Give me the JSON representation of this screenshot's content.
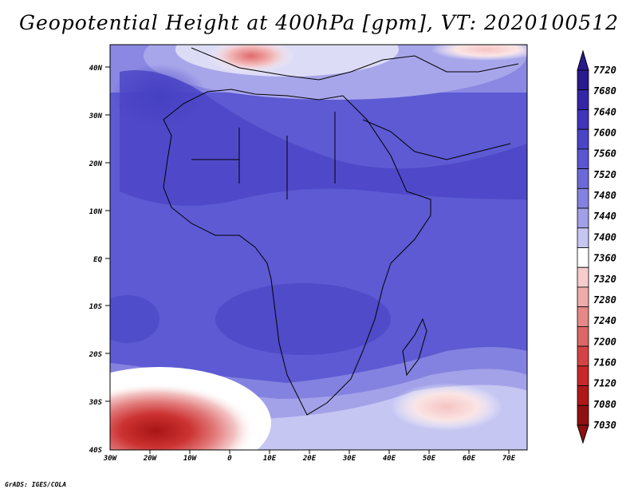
{
  "title": "Geopotential Height at 400hPa [gpm], VT: 2020100512",
  "footer": "GrADS: IGES/COLA",
  "map": {
    "lat_labels": [
      "40N",
      "30N",
      "20N",
      "10N",
      "EQ",
      "10S",
      "20S",
      "30S",
      "40S"
    ],
    "lon_labels": [
      "30W",
      "20W",
      "10W",
      "0",
      "10E",
      "20E",
      "30E",
      "40E",
      "50E",
      "60E",
      "70E"
    ]
  },
  "colorbar": {
    "levels": [
      "7720",
      "7680",
      "7640",
      "7600",
      "7560",
      "7520",
      "7480",
      "7440",
      "7400",
      "7360",
      "7320",
      "7280",
      "7240",
      "7200",
      "7160",
      "7120",
      "7080",
      "7030"
    ],
    "colors": [
      "#2a1a8f",
      "#3526a8",
      "#3f34bb",
      "#4a44c6",
      "#5a56d1",
      "#6c6ad9",
      "#8482e0",
      "#a09fe8",
      "#c6c6f2",
      "#ffffff",
      "#f6cccc",
      "#efaaaa",
      "#e68888",
      "#dd6666",
      "#d44444",
      "#c82828",
      "#b01818",
      "#901010"
    ]
  }
}
